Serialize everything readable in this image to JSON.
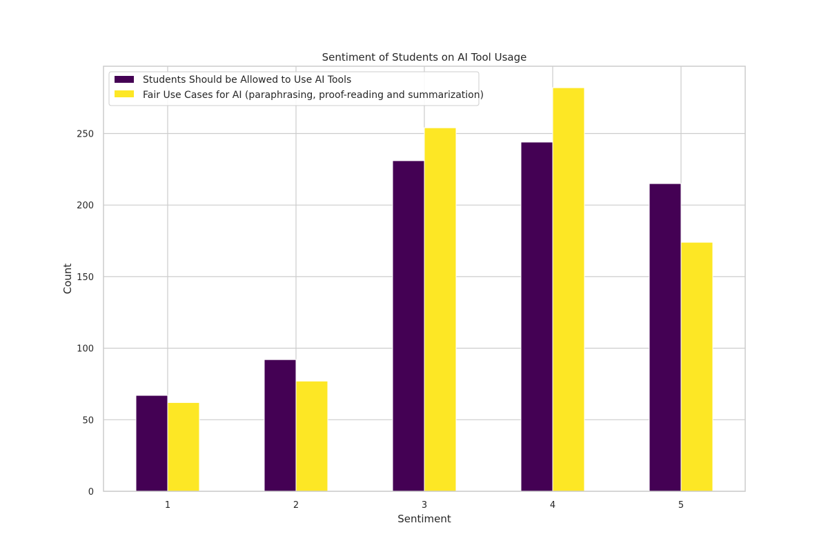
{
  "chart_data": {
    "type": "bar",
    "title": "Sentiment of Students on AI Tool Usage",
    "xlabel": "Sentiment",
    "ylabel": "Count",
    "categories": [
      "1",
      "2",
      "3",
      "4",
      "5"
    ],
    "series": [
      {
        "name": "Students Should be Allowed to Use AI Tools",
        "color": "#440154",
        "values": [
          67,
          92,
          231,
          244,
          215
        ]
      },
      {
        "name": "Fair Use Cases for AI (paraphrasing, proof-reading and summarization)",
        "color": "#fde725",
        "values": [
          62,
          77,
          254,
          282,
          174
        ]
      }
    ],
    "ylim": [
      0,
      297
    ],
    "yticks": [
      0,
      50,
      100,
      150,
      200,
      250
    ],
    "grid": true,
    "legend_position": "top-left"
  }
}
